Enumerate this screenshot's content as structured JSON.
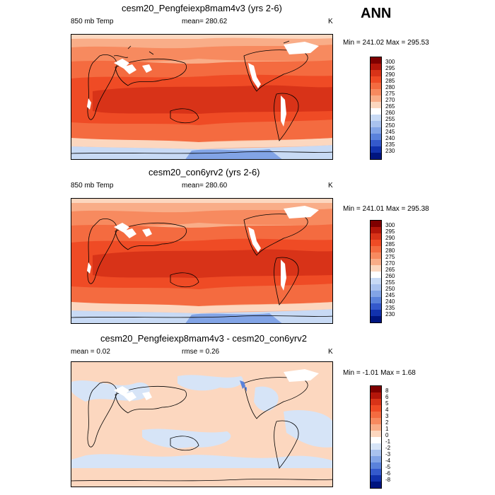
{
  "season": "ANN",
  "panels": [
    {
      "title": "cesm20_Pengfeiexp8mam4v3 (yrs 2-6)",
      "left_label": "850 mb Temp",
      "center_label": "mean= 280.62",
      "units": "K",
      "minmax": "Min = 241.02 Max = 295.53"
    },
    {
      "title": "cesm20_con6yrv2 (yrs 2-6)",
      "left_label": "850 mb Temp",
      "center_label": "mean= 280.60",
      "units": "K",
      "minmax": "Min = 241.01 Max = 295.38"
    },
    {
      "title": "cesm20_Pengfeiexp8mam4v3 - cesm20_con6yrv2",
      "left_label": "mean =   0.02",
      "center_label": "rmse =   0.26",
      "units": "K",
      "minmax": "Min =  -1.01 Max =   1.68"
    }
  ],
  "colorbars": {
    "temp": {
      "levels": [
        "300",
        "295",
        "290",
        "285",
        "280",
        "275",
        "270",
        "265",
        "260",
        "255",
        "250",
        "245",
        "240",
        "235",
        "230"
      ],
      "colors": [
        "#7f0000",
        "#b4160a",
        "#d83318",
        "#ef4b25",
        "#f46b40",
        "#f78a5f",
        "#f9ad88",
        "#fcd7bf",
        "#ffffff",
        "#c8daf5",
        "#a9c2ee",
        "#82a4e6",
        "#5a82db",
        "#3459cc",
        "#1232ad",
        "#00157f"
      ]
    },
    "diff": {
      "levels": [
        "8",
        "6",
        "5",
        "4",
        "3",
        "2",
        "1",
        "0",
        "-1",
        "-2",
        "-3",
        "-4",
        "-5",
        "-6",
        "-8"
      ],
      "colors": [
        "#7f0000",
        "#b4160a",
        "#d83318",
        "#ef4b25",
        "#f46b40",
        "#f78a5f",
        "#f9ad88",
        "#fcd7bf",
        "#ffffff",
        "#d6e4f7",
        "#a9c2ee",
        "#82a4e6",
        "#5a82db",
        "#3459cc",
        "#1232ad",
        "#00157f"
      ]
    }
  }
}
